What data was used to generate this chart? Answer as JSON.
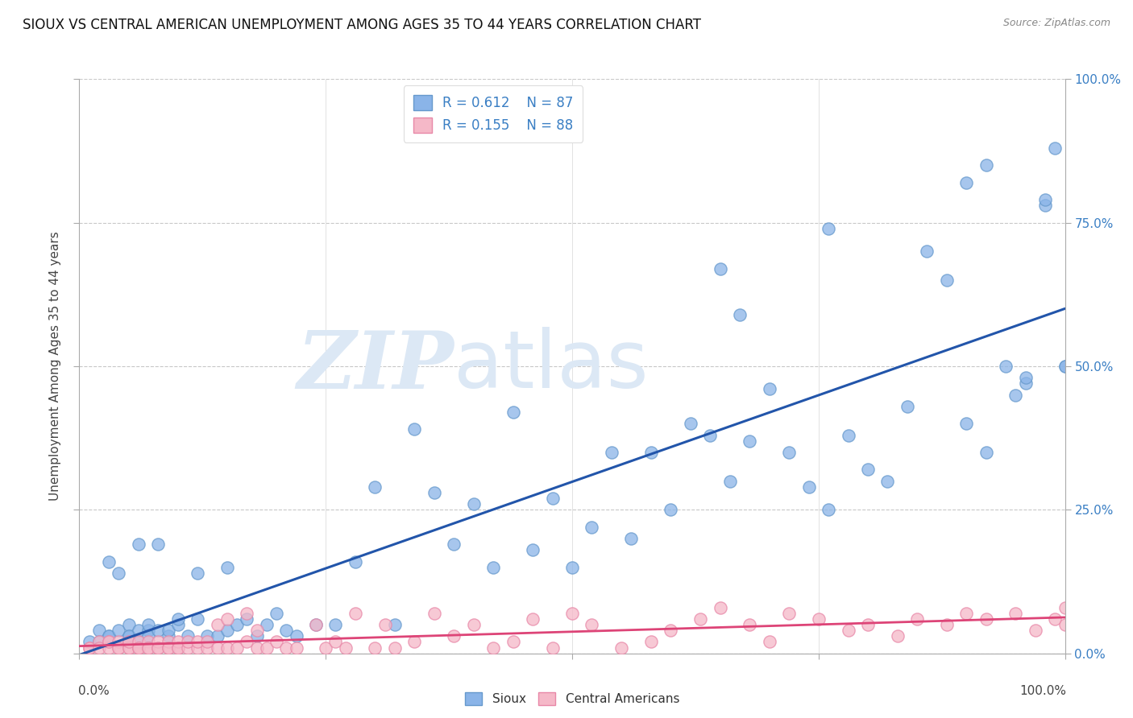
{
  "title": "SIOUX VS CENTRAL AMERICAN UNEMPLOYMENT AMONG AGES 35 TO 44 YEARS CORRELATION CHART",
  "source": "Source: ZipAtlas.com",
  "ylabel": "Unemployment Among Ages 35 to 44 years",
  "ytick_labels": [
    "0.0%",
    "25.0%",
    "50.0%",
    "75.0%",
    "100.0%"
  ],
  "ytick_vals": [
    0.0,
    0.25,
    0.5,
    0.75,
    1.0
  ],
  "xlim": [
    0.0,
    1.0
  ],
  "ylim": [
    0.0,
    1.0
  ],
  "sioux_R": 0.612,
  "sioux_N": 87,
  "central_R": 0.155,
  "central_N": 88,
  "sioux_color": "#8ab4e8",
  "sioux_edge_color": "#6699cc",
  "central_color": "#f5b8c8",
  "central_edge_color": "#e888a8",
  "sioux_line_color": "#2255aa",
  "central_line_color": "#dd4477",
  "grid_color": "#c8c8c8",
  "background_color": "#ffffff",
  "watermark_zip": "ZIP",
  "watermark_atlas": "atlas",
  "watermark_color": "#dce8f5",
  "legend_label_sioux": "Sioux",
  "legend_label_central": "Central Americans",
  "title_fontsize": 12,
  "sioux_x": [
    0.01,
    0.02,
    0.02,
    0.03,
    0.03,
    0.03,
    0.04,
    0.04,
    0.05,
    0.05,
    0.05,
    0.05,
    0.06,
    0.06,
    0.06,
    0.07,
    0.07,
    0.07,
    0.08,
    0.08,
    0.09,
    0.09,
    0.1,
    0.1,
    0.11,
    0.12,
    0.12,
    0.13,
    0.14,
    0.15,
    0.15,
    0.16,
    0.17,
    0.18,
    0.19,
    0.2,
    0.21,
    0.22,
    0.24,
    0.26,
    0.28,
    0.3,
    0.32,
    0.34,
    0.36,
    0.38,
    0.4,
    0.42,
    0.44,
    0.46,
    0.48,
    0.5,
    0.52,
    0.54,
    0.56,
    0.58,
    0.6,
    0.62,
    0.64,
    0.66,
    0.68,
    0.7,
    0.72,
    0.74,
    0.76,
    0.78,
    0.8,
    0.82,
    0.84,
    0.86,
    0.88,
    0.9,
    0.92,
    0.94,
    0.96,
    0.98,
    1.0,
    0.65,
    0.67,
    0.76,
    0.9,
    0.92,
    0.95,
    0.96,
    0.98,
    0.99,
    1.0
  ],
  "sioux_y": [
    0.02,
    0.04,
    0.02,
    0.03,
    0.16,
    0.03,
    0.04,
    0.14,
    0.02,
    0.03,
    0.05,
    0.03,
    0.02,
    0.04,
    0.19,
    0.04,
    0.03,
    0.05,
    0.19,
    0.04,
    0.03,
    0.04,
    0.05,
    0.06,
    0.03,
    0.06,
    0.14,
    0.03,
    0.03,
    0.15,
    0.04,
    0.05,
    0.06,
    0.03,
    0.05,
    0.07,
    0.04,
    0.03,
    0.05,
    0.05,
    0.16,
    0.29,
    0.05,
    0.39,
    0.28,
    0.19,
    0.26,
    0.15,
    0.42,
    0.18,
    0.27,
    0.15,
    0.22,
    0.35,
    0.2,
    0.35,
    0.25,
    0.4,
    0.38,
    0.3,
    0.37,
    0.46,
    0.35,
    0.29,
    0.25,
    0.38,
    0.32,
    0.3,
    0.43,
    0.7,
    0.65,
    0.4,
    0.35,
    0.5,
    0.47,
    0.78,
    0.5,
    0.67,
    0.59,
    0.74,
    0.82,
    0.85,
    0.45,
    0.48,
    0.79,
    0.88,
    0.5
  ],
  "central_x": [
    0.01,
    0.01,
    0.02,
    0.02,
    0.03,
    0.03,
    0.03,
    0.04,
    0.04,
    0.04,
    0.05,
    0.05,
    0.05,
    0.05,
    0.06,
    0.06,
    0.06,
    0.06,
    0.07,
    0.07,
    0.07,
    0.08,
    0.08,
    0.08,
    0.09,
    0.09,
    0.09,
    0.1,
    0.1,
    0.1,
    0.11,
    0.11,
    0.12,
    0.12,
    0.13,
    0.13,
    0.14,
    0.14,
    0.15,
    0.15,
    0.16,
    0.17,
    0.17,
    0.18,
    0.18,
    0.19,
    0.2,
    0.21,
    0.22,
    0.24,
    0.25,
    0.26,
    0.27,
    0.28,
    0.3,
    0.31,
    0.32,
    0.34,
    0.36,
    0.38,
    0.4,
    0.42,
    0.44,
    0.46,
    0.48,
    0.5,
    0.52,
    0.55,
    0.58,
    0.6,
    0.63,
    0.65,
    0.68,
    0.7,
    0.72,
    0.75,
    0.78,
    0.8,
    0.83,
    0.85,
    0.88,
    0.9,
    0.92,
    0.95,
    0.97,
    0.99,
    1.0,
    1.0
  ],
  "central_y": [
    0.01,
    0.01,
    0.02,
    0.01,
    0.02,
    0.01,
    0.02,
    0.01,
    0.02,
    0.01,
    0.02,
    0.01,
    0.01,
    0.02,
    0.01,
    0.02,
    0.01,
    0.01,
    0.02,
    0.01,
    0.01,
    0.01,
    0.02,
    0.01,
    0.01,
    0.02,
    0.01,
    0.01,
    0.02,
    0.01,
    0.01,
    0.02,
    0.01,
    0.02,
    0.01,
    0.02,
    0.01,
    0.05,
    0.01,
    0.06,
    0.01,
    0.02,
    0.07,
    0.01,
    0.04,
    0.01,
    0.02,
    0.01,
    0.01,
    0.05,
    0.01,
    0.02,
    0.01,
    0.07,
    0.01,
    0.05,
    0.01,
    0.02,
    0.07,
    0.03,
    0.05,
    0.01,
    0.02,
    0.06,
    0.01,
    0.07,
    0.05,
    0.01,
    0.02,
    0.04,
    0.06,
    0.08,
    0.05,
    0.02,
    0.07,
    0.06,
    0.04,
    0.05,
    0.03,
    0.06,
    0.05,
    0.07,
    0.06,
    0.07,
    0.04,
    0.06,
    0.05,
    0.08
  ]
}
